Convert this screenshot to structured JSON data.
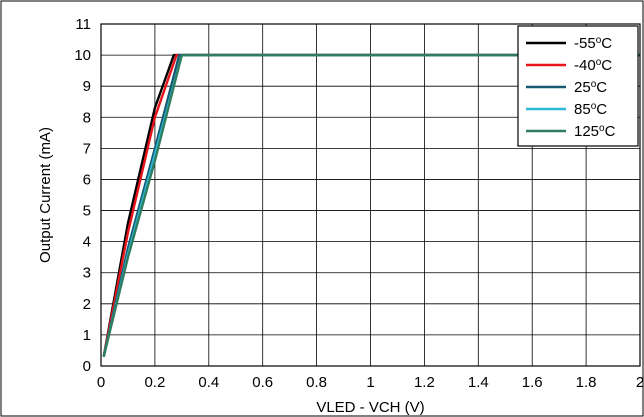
{
  "chart_data": {
    "type": "line",
    "title": "",
    "xlabel": "VLED - VCH (V)",
    "ylabel": "Output Current (mA)",
    "xlim": [
      0,
      2
    ],
    "ylim": [
      0,
      11
    ],
    "x_ticks": [
      0,
      0.2,
      0.4,
      0.6,
      0.8,
      1,
      1.2,
      1.4,
      1.6,
      1.8,
      2
    ],
    "x_tick_labels": [
      "0",
      "0.2",
      "0.4",
      "0.6",
      "0.8",
      "1",
      "1.2",
      "1.4",
      "1.6",
      "1.8",
      "2"
    ],
    "y_ticks": [
      0,
      1,
      2,
      3,
      4,
      5,
      6,
      7,
      8,
      9,
      10,
      11
    ],
    "y_tick_labels": [
      "0",
      "1",
      "2",
      "3",
      "4",
      "5",
      "6",
      "7",
      "8",
      "9",
      "10",
      "11"
    ],
    "grid": true,
    "legend_position": "top-right",
    "series": [
      {
        "name": "-55",
        "name_suffix": "C",
        "color": "#000000",
        "x": [
          0.01,
          0.1,
          0.2,
          0.27,
          0.28,
          0.4,
          1.0,
          1.6,
          2.0
        ],
        "y": [
          0.3,
          4.6,
          8.3,
          10.0,
          10.0,
          10.0,
          10.0,
          10.0,
          10.0
        ]
      },
      {
        "name": "-40",
        "name_suffix": "C",
        "color": "#e8141b",
        "x": [
          0.01,
          0.1,
          0.2,
          0.28,
          0.29,
          0.4,
          1.0,
          1.6,
          2.0
        ],
        "y": [
          0.3,
          4.3,
          8.0,
          10.0,
          10.0,
          10.0,
          10.0,
          10.0,
          10.0
        ]
      },
      {
        "name": "25",
        "name_suffix": "C",
        "color": "#165a72",
        "x": [
          0.01,
          0.1,
          0.2,
          0.29,
          0.3,
          0.4,
          1.0,
          1.6,
          2.0
        ],
        "y": [
          0.3,
          3.8,
          7.0,
          10.0,
          10.0,
          10.0,
          10.0,
          10.0,
          10.0
        ]
      },
      {
        "name": "85",
        "name_suffix": "C",
        "color": "#2eb7d6",
        "x": [
          0.01,
          0.1,
          0.2,
          0.3,
          0.31,
          0.4,
          1.0,
          1.6,
          2.0
        ],
        "y": [
          0.3,
          3.6,
          6.8,
          10.0,
          10.0,
          10.0,
          10.0,
          10.0,
          10.0
        ]
      },
      {
        "name": "125",
        "name_suffix": "C",
        "color": "#2e7d5e",
        "x": [
          0.01,
          0.1,
          0.2,
          0.3,
          0.31,
          0.4,
          1.0,
          1.6,
          2.0
        ],
        "y": [
          0.3,
          3.5,
          6.6,
          10.0,
          10.0,
          10.0,
          10.0,
          10.0,
          10.0
        ]
      }
    ]
  }
}
